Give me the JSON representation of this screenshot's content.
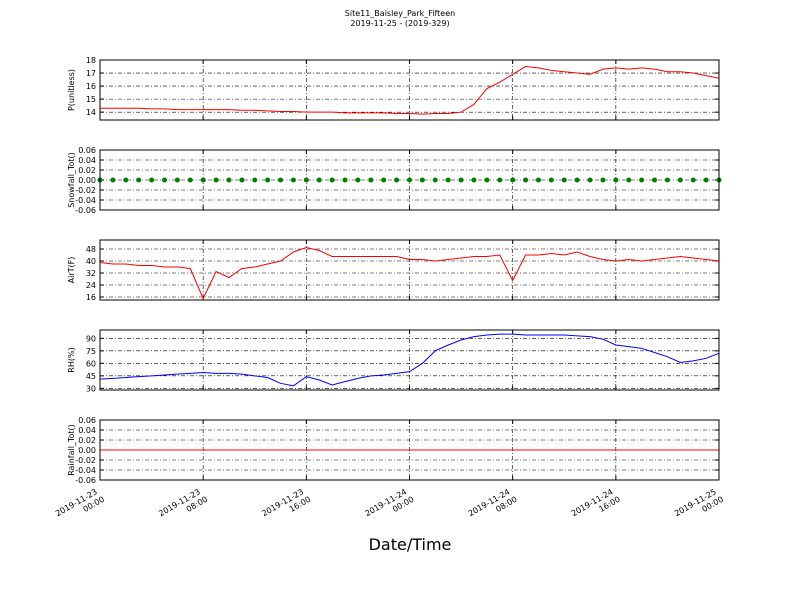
{
  "title": "Site11_Baisley_Park_Fifteen",
  "subtitle": "2019-11-25 - (2019-329)",
  "chart_data": [
    {
      "type": "line",
      "ylabel": "P(unitless)",
      "ylim": [
        13.4,
        18
      ],
      "yticks": [
        14,
        15,
        16,
        17,
        18
      ],
      "grid": true,
      "xlim": [
        "2019-11-23 00:00",
        "2019-11-25 00:00"
      ],
      "xticks": [
        "2019-11-23 00:00",
        "2019-11-23 08:00",
        "2019-11-23 16:00",
        "2019-11-24 00:00",
        "2019-11-24 08:00",
        "2019-11-24 16:00",
        "2019-11-25 00:00"
      ],
      "x": [
        "2019-11-23 00:00",
        "2019-11-23 01:00",
        "2019-11-23 02:00",
        "2019-11-23 03:00",
        "2019-11-23 04:00",
        "2019-11-23 05:00",
        "2019-11-23 06:00",
        "2019-11-23 07:00",
        "2019-11-23 08:00",
        "2019-11-23 09:00",
        "2019-11-23 10:00",
        "2019-11-23 11:00",
        "2019-11-23 12:00",
        "2019-11-23 13:00",
        "2019-11-23 14:00",
        "2019-11-23 15:00",
        "2019-11-23 16:00",
        "2019-11-23 17:00",
        "2019-11-23 18:00",
        "2019-11-23 19:00",
        "2019-11-23 20:00",
        "2019-11-23 21:00",
        "2019-11-23 22:00",
        "2019-11-23 23:00",
        "2019-11-24 00:00",
        "2019-11-24 01:00",
        "2019-11-24 02:00",
        "2019-11-24 03:00",
        "2019-11-24 04:00",
        "2019-11-24 05:00",
        "2019-11-24 06:00",
        "2019-11-24 07:00",
        "2019-11-24 08:00",
        "2019-11-24 09:00",
        "2019-11-24 10:00",
        "2019-11-24 11:00",
        "2019-11-24 12:00",
        "2019-11-24 13:00",
        "2019-11-24 14:00",
        "2019-11-24 15:00",
        "2019-11-24 16:00",
        "2019-11-24 17:00",
        "2019-11-24 18:00",
        "2019-11-24 19:00",
        "2019-11-24 20:00",
        "2019-11-24 21:00",
        "2019-11-24 22:00",
        "2019-11-24 23:00",
        "2019-11-25 00:00"
      ],
      "series": [
        {
          "color": "#ff0000",
          "values": [
            14.3,
            14.3,
            14.3,
            14.3,
            14.25,
            14.25,
            14.2,
            14.2,
            14.2,
            14.2,
            14.2,
            14.15,
            14.15,
            14.1,
            14.05,
            14.05,
            14.0,
            14.0,
            14.0,
            13.95,
            13.95,
            13.95,
            13.95,
            13.9,
            13.9,
            13.85,
            13.9,
            13.9,
            14.0,
            14.6,
            15.8,
            16.3,
            16.9,
            17.5,
            17.4,
            17.2,
            17.1,
            17.0,
            16.9,
            17.3,
            17.4,
            17.3,
            17.4,
            17.3,
            17.1,
            17.1,
            17.0,
            16.8,
            16.6
          ]
        }
      ]
    },
    {
      "type": "line",
      "ylabel": "Snowfall_Tot()",
      "ylim": [
        -0.06,
        0.06
      ],
      "yticks": [
        -0.06,
        -0.04,
        -0.02,
        {
          "value": 0,
          "label": "0.00"
        },
        0.02,
        0.04,
        0.06
      ],
      "grid": true,
      "marker": "o",
      "xlim": [
        "2019-11-23 00:00",
        "2019-11-25 00:00"
      ],
      "xticks": [
        "2019-11-23 00:00",
        "2019-11-23 08:00",
        "2019-11-23 16:00",
        "2019-11-24 00:00",
        "2019-11-24 08:00",
        "2019-11-24 16:00",
        "2019-11-25 00:00"
      ],
      "x": [
        "2019-11-23 00:00",
        "2019-11-23 01:00",
        "2019-11-23 02:00",
        "2019-11-23 03:00",
        "2019-11-23 04:00",
        "2019-11-23 05:00",
        "2019-11-23 06:00",
        "2019-11-23 07:00",
        "2019-11-23 08:00",
        "2019-11-23 09:00",
        "2019-11-23 10:00",
        "2019-11-23 11:00",
        "2019-11-23 12:00",
        "2019-11-23 13:00",
        "2019-11-23 14:00",
        "2019-11-23 15:00",
        "2019-11-23 16:00",
        "2019-11-23 17:00",
        "2019-11-23 18:00",
        "2019-11-23 19:00",
        "2019-11-23 20:00",
        "2019-11-23 21:00",
        "2019-11-23 22:00",
        "2019-11-23 23:00",
        "2019-11-24 00:00",
        "2019-11-24 01:00",
        "2019-11-24 02:00",
        "2019-11-24 03:00",
        "2019-11-24 04:00",
        "2019-11-24 05:00",
        "2019-11-24 06:00",
        "2019-11-24 07:00",
        "2019-11-24 08:00",
        "2019-11-24 09:00",
        "2019-11-24 10:00",
        "2019-11-24 11:00",
        "2019-11-24 12:00",
        "2019-11-24 13:00",
        "2019-11-24 14:00",
        "2019-11-24 15:00",
        "2019-11-24 16:00",
        "2019-11-24 17:00",
        "2019-11-24 18:00",
        "2019-11-24 19:00",
        "2019-11-24 20:00",
        "2019-11-24 21:00",
        "2019-11-24 22:00",
        "2019-11-24 23:00",
        "2019-11-25 00:00"
      ],
      "series": [
        {
          "color": "#008000",
          "values": [
            0,
            0,
            0,
            0,
            0,
            0,
            0,
            0,
            0,
            0,
            0,
            0,
            0,
            0,
            0,
            0,
            0,
            0,
            0,
            0,
            0,
            0,
            0,
            0,
            0,
            0,
            0,
            0,
            0,
            0,
            0,
            0,
            0,
            0,
            0,
            0,
            0,
            0,
            0,
            0,
            0,
            0,
            0,
            0,
            0,
            0,
            0,
            0,
            0
          ]
        }
      ]
    },
    {
      "type": "line",
      "ylabel": "AirT(F)",
      "ylim": [
        14,
        54
      ],
      "yticks": [
        16,
        24,
        32,
        40,
        48
      ],
      "grid": true,
      "xlim": [
        "2019-11-23 00:00",
        "2019-11-25 00:00"
      ],
      "xticks": [
        "2019-11-23 00:00",
        "2019-11-23 08:00",
        "2019-11-23 16:00",
        "2019-11-24 00:00",
        "2019-11-24 08:00",
        "2019-11-24 16:00",
        "2019-11-25 00:00"
      ],
      "x": [
        "2019-11-23 00:00",
        "2019-11-23 01:00",
        "2019-11-23 02:00",
        "2019-11-23 03:00",
        "2019-11-23 04:00",
        "2019-11-23 05:00",
        "2019-11-23 06:00",
        "2019-11-23 07:00",
        "2019-11-23 08:00",
        "2019-11-23 09:00",
        "2019-11-23 10:00",
        "2019-11-23 11:00",
        "2019-11-23 12:00",
        "2019-11-23 13:00",
        "2019-11-23 14:00",
        "2019-11-23 15:00",
        "2019-11-23 16:00",
        "2019-11-23 17:00",
        "2019-11-23 18:00",
        "2019-11-23 19:00",
        "2019-11-23 20:00",
        "2019-11-23 21:00",
        "2019-11-23 22:00",
        "2019-11-23 23:00",
        "2019-11-24 00:00",
        "2019-11-24 01:00",
        "2019-11-24 02:00",
        "2019-11-24 03:00",
        "2019-11-24 04:00",
        "2019-11-24 05:00",
        "2019-11-24 06:00",
        "2019-11-24 07:00",
        "2019-11-24 08:00",
        "2019-11-24 09:00",
        "2019-11-24 10:00",
        "2019-11-24 11:00",
        "2019-11-24 12:00",
        "2019-11-24 13:00",
        "2019-11-24 14:00",
        "2019-11-24 15:00",
        "2019-11-24 16:00",
        "2019-11-24 17:00",
        "2019-11-24 18:00",
        "2019-11-24 19:00",
        "2019-11-24 20:00",
        "2019-11-24 21:00",
        "2019-11-24 22:00",
        "2019-11-24 23:00",
        "2019-11-25 00:00"
      ],
      "series": [
        {
          "color": "#ff0000",
          "values": [
            39,
            38,
            38,
            37,
            37,
            36,
            36,
            35,
            15,
            33,
            29,
            35,
            36,
            38,
            40,
            46,
            49,
            47,
            43,
            43,
            43,
            43,
            43,
            43,
            41,
            41,
            40,
            41,
            42,
            43,
            43,
            44,
            27,
            44,
            44,
            45,
            44,
            46,
            43,
            41,
            40,
            41,
            40,
            41,
            42,
            43,
            42,
            41,
            40
          ]
        }
      ]
    },
    {
      "type": "line",
      "ylabel": "RH(%)",
      "ylim": [
        28,
        100
      ],
      "yticks": [
        30,
        45,
        60,
        75,
        90
      ],
      "grid": true,
      "xlim": [
        "2019-11-23 00:00",
        "2019-11-25 00:00"
      ],
      "xticks": [
        "2019-11-23 00:00",
        "2019-11-23 08:00",
        "2019-11-23 16:00",
        "2019-11-24 00:00",
        "2019-11-24 08:00",
        "2019-11-24 16:00",
        "2019-11-25 00:00"
      ],
      "x": [
        "2019-11-23 00:00",
        "2019-11-23 01:00",
        "2019-11-23 02:00",
        "2019-11-23 03:00",
        "2019-11-23 04:00",
        "2019-11-23 05:00",
        "2019-11-23 06:00",
        "2019-11-23 07:00",
        "2019-11-23 08:00",
        "2019-11-23 09:00",
        "2019-11-23 10:00",
        "2019-11-23 11:00",
        "2019-11-23 12:00",
        "2019-11-23 13:00",
        "2019-11-23 14:00",
        "2019-11-23 15:00",
        "2019-11-23 16:00",
        "2019-11-23 17:00",
        "2019-11-23 18:00",
        "2019-11-23 19:00",
        "2019-11-23 20:00",
        "2019-11-23 21:00",
        "2019-11-23 22:00",
        "2019-11-23 23:00",
        "2019-11-24 00:00",
        "2019-11-24 01:00",
        "2019-11-24 02:00",
        "2019-11-24 03:00",
        "2019-11-24 04:00",
        "2019-11-24 05:00",
        "2019-11-24 06:00",
        "2019-11-24 07:00",
        "2019-11-24 08:00",
        "2019-11-24 09:00",
        "2019-11-24 10:00",
        "2019-11-24 11:00",
        "2019-11-24 12:00",
        "2019-11-24 13:00",
        "2019-11-24 14:00",
        "2019-11-24 15:00",
        "2019-11-24 16:00",
        "2019-11-24 17:00",
        "2019-11-24 18:00",
        "2019-11-24 19:00",
        "2019-11-24 20:00",
        "2019-11-24 21:00",
        "2019-11-24 22:00",
        "2019-11-24 23:00",
        "2019-11-25 00:00"
      ],
      "series": [
        {
          "color": "#0000ff",
          "values": [
            41,
            42,
            43,
            44,
            45,
            46,
            47,
            48,
            49,
            48,
            48,
            47,
            45,
            43,
            36,
            33,
            44,
            40,
            34,
            38,
            42,
            45,
            46,
            48,
            50,
            60,
            75,
            82,
            88,
            92,
            94,
            95,
            95,
            94,
            94,
            94,
            94,
            93,
            92,
            89,
            82,
            80,
            78,
            73,
            68,
            61,
            63,
            66,
            72
          ]
        }
      ]
    },
    {
      "type": "line",
      "ylabel": "Rainfall_Tot()",
      "xlabel": "Date/Time",
      "ylim": [
        -0.06,
        0.06
      ],
      "yticks": [
        -0.06,
        -0.04,
        -0.02,
        {
          "value": 0,
          "label": "0.00"
        },
        0.02,
        0.04,
        0.06
      ],
      "grid": true,
      "xlim": [
        "2019-11-23 00:00",
        "2019-11-25 00:00"
      ],
      "xticks": [
        "2019-11-23 00:00",
        "2019-11-23 08:00",
        "2019-11-23 16:00",
        "2019-11-24 00:00",
        "2019-11-24 08:00",
        "2019-11-24 16:00",
        "2019-11-25 00:00"
      ],
      "x": [
        "2019-11-23 00:00",
        "2019-11-23 01:00",
        "2019-11-23 02:00",
        "2019-11-23 03:00",
        "2019-11-23 04:00",
        "2019-11-23 05:00",
        "2019-11-23 06:00",
        "2019-11-23 07:00",
        "2019-11-23 08:00",
        "2019-11-23 09:00",
        "2019-11-23 10:00",
        "2019-11-23 11:00",
        "2019-11-23 12:00",
        "2019-11-23 13:00",
        "2019-11-23 14:00",
        "2019-11-23 15:00",
        "2019-11-23 16:00",
        "2019-11-23 17:00",
        "2019-11-23 18:00",
        "2019-11-23 19:00",
        "2019-11-23 20:00",
        "2019-11-23 21:00",
        "2019-11-23 22:00",
        "2019-11-23 23:00",
        "2019-11-24 00:00",
        "2019-11-24 01:00",
        "2019-11-24 02:00",
        "2019-11-24 03:00",
        "2019-11-24 04:00",
        "2019-11-24 05:00",
        "2019-11-24 06:00",
        "2019-11-24 07:00",
        "2019-11-24 08:00",
        "2019-11-24 09:00",
        "2019-11-24 10:00",
        "2019-11-24 11:00",
        "2019-11-24 12:00",
        "2019-11-24 13:00",
        "2019-11-24 14:00",
        "2019-11-24 15:00",
        "2019-11-24 16:00",
        "2019-11-24 17:00",
        "2019-11-24 18:00",
        "2019-11-24 19:00",
        "2019-11-24 20:00",
        "2019-11-24 21:00",
        "2019-11-24 22:00",
        "2019-11-24 23:00",
        "2019-11-25 00:00"
      ],
      "series": [
        {
          "color": "#ff0000",
          "values": [
            0,
            0,
            0,
            0,
            0,
            0,
            0,
            0,
            0,
            0,
            0,
            0,
            0,
            0,
            0,
            0,
            0,
            0,
            0,
            0,
            0,
            0,
            0,
            0,
            0,
            0,
            0,
            0,
            0,
            0,
            0,
            0,
            0,
            0,
            0,
            0,
            0,
            0,
            0,
            0,
            0,
            0,
            0,
            0,
            0,
            0,
            0,
            0,
            0
          ]
        }
      ]
    }
  ]
}
